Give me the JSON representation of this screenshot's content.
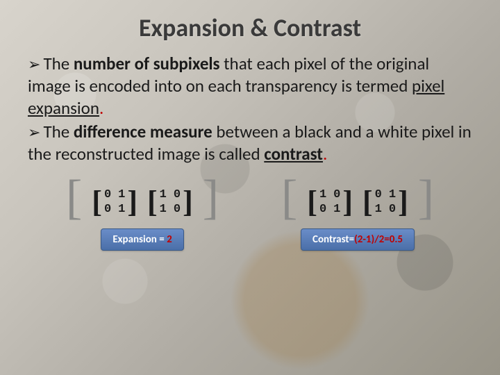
{
  "title": "Expansion & Contrast",
  "bullets": [
    {
      "prefix": "The ",
      "bold1": "number of subpixels",
      "mid": " that each pixel of the original image is encoded into on each transparency is termed ",
      "term": "pixel expansion",
      "dot": "."
    },
    {
      "prefix": "The ",
      "bold1": "difference measure",
      "mid": " between a black and a white pixel in the reconstructed image is called ",
      "term": "contrast",
      "dot": "."
    }
  ],
  "groups": [
    {
      "matrices": [
        {
          "cells": [
            "0",
            "1",
            "0",
            "1"
          ]
        },
        {
          "cells": [
            "1",
            "0",
            "1",
            "0"
          ]
        }
      ],
      "caption_prefix": "Expansion = ",
      "caption_value": "2"
    },
    {
      "matrices": [
        {
          "cells": [
            "1",
            "0",
            "0",
            "1"
          ]
        },
        {
          "cells": [
            "0",
            "1",
            "1",
            "0"
          ]
        }
      ],
      "caption_prefix": "Contrast=",
      "caption_value": "(2-1)/2=0.5"
    }
  ],
  "colors": {
    "accent_red": "#c00000",
    "pill_bg_top": "#6a8dc8",
    "pill_bg_bottom": "#4a6fa8"
  }
}
